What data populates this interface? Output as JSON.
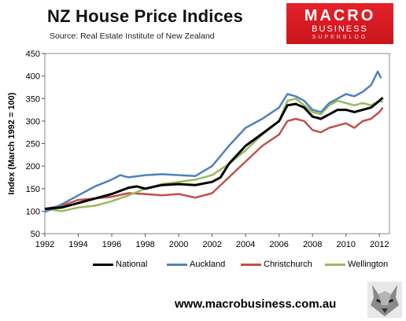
{
  "header": {
    "title": "NZ House Price Indices",
    "subtitle": "Source: Real Estate Institute of New Zealand"
  },
  "logo": {
    "line1": "MACRO",
    "line2": "BUSINESS",
    "line3": "SUPERBLOG"
  },
  "footer": {
    "url": "www.macrobusiness.com.au",
    "mascot_icon": "wolf-icon"
  },
  "colors": {
    "National": "#000000",
    "Auckland": "#4f81bd",
    "Christchurch": "#c0504d",
    "Wellington": "#9bbb59",
    "logo_red": "#e4222a"
  },
  "chart_data": {
    "type": "line",
    "title": "",
    "xlabel": "",
    "ylabel": "Index (March 1992 = 100)",
    "xlim": [
      1992,
      2012.6
    ],
    "ylim": [
      50,
      450
    ],
    "x_ticks": [
      1992,
      1994,
      1996,
      1998,
      2000,
      2002,
      2004,
      2006,
      2008,
      2010,
      2012
    ],
    "y_ticks": [
      50,
      100,
      150,
      200,
      250,
      300,
      350,
      400,
      450
    ],
    "grid": false,
    "legend_position": "bottom",
    "series": [
      {
        "name": "National",
        "points": [
          [
            1992,
            105
          ],
          [
            1993,
            108
          ],
          [
            1994,
            118
          ],
          [
            1995,
            128
          ],
          [
            1996,
            138
          ],
          [
            1997,
            152
          ],
          [
            1997.5,
            155
          ],
          [
            1998,
            150
          ],
          [
            1999,
            158
          ],
          [
            2000,
            160
          ],
          [
            2001,
            158
          ],
          [
            2002,
            165
          ],
          [
            2002.5,
            175
          ],
          [
            2003,
            205
          ],
          [
            2004,
            245
          ],
          [
            2005,
            272
          ],
          [
            2006,
            300
          ],
          [
            2006.5,
            335
          ],
          [
            2007,
            338
          ],
          [
            2007.5,
            330
          ],
          [
            2008,
            310
          ],
          [
            2008.5,
            305
          ],
          [
            2009,
            315
          ],
          [
            2009.5,
            325
          ],
          [
            2010,
            325
          ],
          [
            2010.5,
            320
          ],
          [
            2011,
            325
          ],
          [
            2011.5,
            330
          ],
          [
            2012,
            345
          ],
          [
            2012.2,
            352
          ]
        ]
      },
      {
        "name": "Auckland",
        "points": [
          [
            1992,
            98
          ],
          [
            1993,
            115
          ],
          [
            1994,
            135
          ],
          [
            1995,
            155
          ],
          [
            1996,
            170
          ],
          [
            1996.5,
            180
          ],
          [
            1997,
            175
          ],
          [
            1998,
            180
          ],
          [
            1999,
            182
          ],
          [
            2000,
            180
          ],
          [
            2001,
            178
          ],
          [
            2002,
            200
          ],
          [
            2003,
            245
          ],
          [
            2004,
            285
          ],
          [
            2005,
            305
          ],
          [
            2006,
            330
          ],
          [
            2006.5,
            360
          ],
          [
            2007,
            355
          ],
          [
            2007.5,
            345
          ],
          [
            2008,
            325
          ],
          [
            2008.5,
            320
          ],
          [
            2009,
            340
          ],
          [
            2009.5,
            350
          ],
          [
            2010,
            360
          ],
          [
            2010.5,
            355
          ],
          [
            2011,
            365
          ],
          [
            2011.5,
            380
          ],
          [
            2011.9,
            410
          ],
          [
            2012.1,
            395
          ]
        ]
      },
      {
        "name": "Christchurch",
        "points": [
          [
            1992,
            105
          ],
          [
            1993,
            112
          ],
          [
            1994,
            125
          ],
          [
            1995,
            128
          ],
          [
            1996,
            132
          ],
          [
            1997,
            140
          ],
          [
            1998,
            138
          ],
          [
            1999,
            135
          ],
          [
            2000,
            138
          ],
          [
            2001,
            130
          ],
          [
            2002,
            140
          ],
          [
            2003,
            175
          ],
          [
            2004,
            210
          ],
          [
            2005,
            245
          ],
          [
            2006,
            270
          ],
          [
            2006.5,
            300
          ],
          [
            2007,
            305
          ],
          [
            2007.5,
            300
          ],
          [
            2008,
            280
          ],
          [
            2008.5,
            275
          ],
          [
            2009,
            285
          ],
          [
            2009.5,
            290
          ],
          [
            2010,
            295
          ],
          [
            2010.5,
            285
          ],
          [
            2011,
            300
          ],
          [
            2011.5,
            305
          ],
          [
            2012,
            320
          ],
          [
            2012.2,
            330
          ]
        ]
      },
      {
        "name": "Wellington",
        "points": [
          [
            1992,
            105
          ],
          [
            1993,
            100
          ],
          [
            1994,
            108
          ],
          [
            1995,
            112
          ],
          [
            1996,
            122
          ],
          [
            1997,
            135
          ],
          [
            1998,
            150
          ],
          [
            1999,
            160
          ],
          [
            2000,
            165
          ],
          [
            2001,
            170
          ],
          [
            2002,
            180
          ],
          [
            2003,
            205
          ],
          [
            2004,
            235
          ],
          [
            2005,
            270
          ],
          [
            2006,
            300
          ],
          [
            2006.5,
            345
          ],
          [
            2007,
            350
          ],
          [
            2007.5,
            335
          ],
          [
            2008,
            320
          ],
          [
            2008.5,
            315
          ],
          [
            2009,
            335
          ],
          [
            2009.5,
            345
          ],
          [
            2010,
            340
          ],
          [
            2010.5,
            335
          ],
          [
            2011,
            340
          ],
          [
            2011.5,
            335
          ],
          [
            2012,
            345
          ],
          [
            2012.2,
            342
          ]
        ]
      }
    ]
  }
}
